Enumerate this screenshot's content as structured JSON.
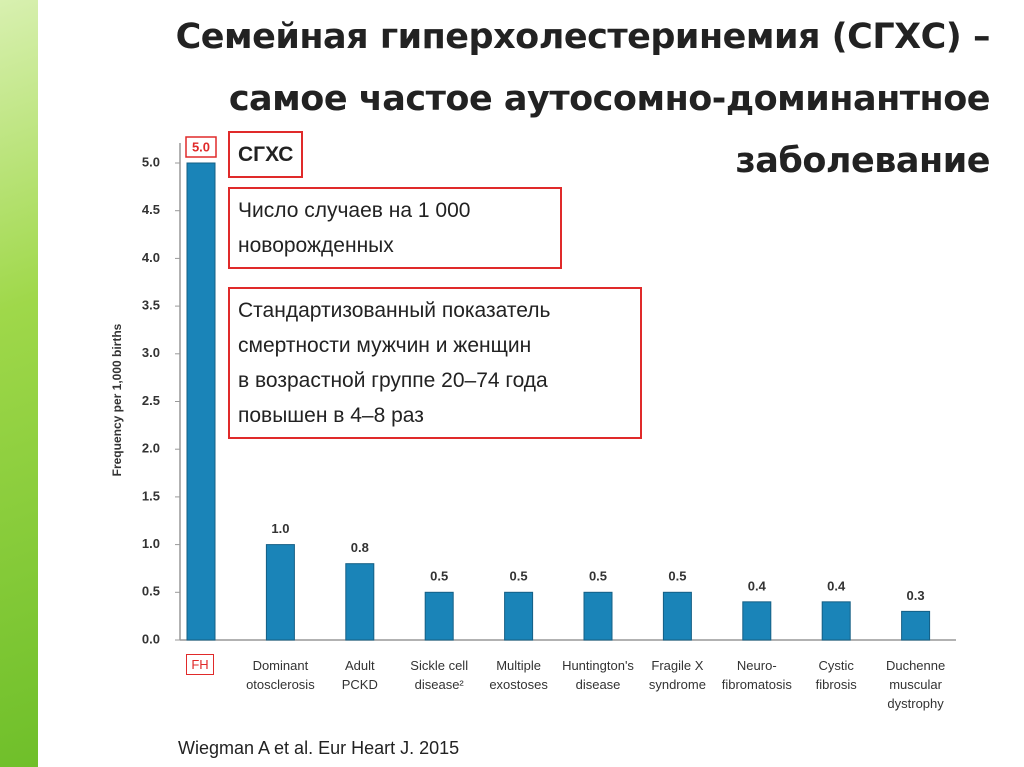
{
  "chart_data": {
    "type": "bar",
    "title": "Семейная гиперхолестеринемия (СГХС) –\nсамое частое аутосомно-доминантное\nзаболевание",
    "ylabel": "Frequency per 1,000 births",
    "categories": [
      "FH",
      "Dominant\notosclerosis",
      "Adult\nPCKD",
      "Sickle cell\ndisease²",
      "Multiple\nexostoses",
      "Huntington's\ndisease",
      "Fragile X\nsyndrome",
      "Neuro-\nfibromatosis",
      "Cystic\nfibrosis",
      "Duchenne\nmuscular\ndystrophy"
    ],
    "values": [
      5,
      1,
      0.8,
      0.5,
      0.5,
      0.5,
      0.5,
      0.4,
      0.4,
      0.3
    ],
    "value_labels": [
      "5.0",
      "1.0",
      "0.8",
      "0.5",
      "0.5",
      "0.5",
      "0.5",
      "0.4",
      "0.4",
      "0.3"
    ],
    "color": "#1a84b8",
    "highlight_index": 0,
    "highlight_color": "#e02a2a",
    "ylim": [
      0,
      5
    ],
    "yticks": [
      {
        "value": 0,
        "label": "0.0"
      },
      0.5,
      {
        "value": 1,
        "label": "1.0"
      },
      1.5,
      {
        "value": 2,
        "label": "2.0"
      },
      2.5,
      {
        "value": 3,
        "label": "3.0"
      },
      3.5,
      {
        "value": 4,
        "label": "4.0"
      },
      4.5,
      {
        "value": 5,
        "label": "5.0"
      }
    ],
    "grid": false,
    "annotations": [
      "СГХС",
      "Число случаев на 1 000\nноворожденных",
      "Стандартизованный показатель\nсмертности  мужчин и женщин\nв возрастной группе 20–74 года\nповышен в 4–8 раз"
    ],
    "source": "Wiegman A et al. Eur Heart J. 2015"
  }
}
